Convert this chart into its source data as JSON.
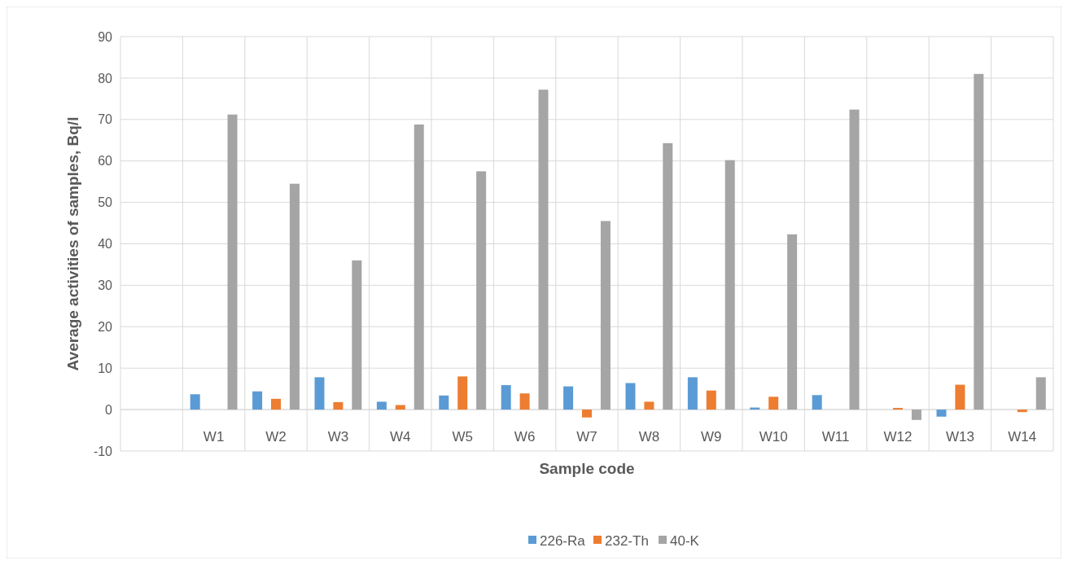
{
  "chart_data": {
    "type": "bar",
    "xlabel": "Sample code",
    "ylabel": "Average activities of samples, Bq/l",
    "categories": [
      null,
      "W1",
      "W2",
      "W3",
      "W4",
      "W5",
      "W6",
      "W7",
      "W8",
      "W9",
      "W10",
      "W11",
      "W12",
      "W13",
      "W14"
    ],
    "series": [
      {
        "name": "226-Ra",
        "color": "#5b9bd5",
        "values": [
          null,
          3.7,
          4.4,
          7.8,
          1.9,
          3.4,
          5.9,
          5.6,
          6.4,
          7.8,
          0.5,
          3.5,
          null,
          -1.7,
          null
        ]
      },
      {
        "name": "232-Th",
        "color": "#ed7d31",
        "values": [
          null,
          null,
          2.6,
          1.8,
          1.1,
          8.0,
          3.9,
          -1.9,
          1.9,
          4.6,
          3.1,
          null,
          0.4,
          6.0,
          -0.6
        ]
      },
      {
        "name": "40-K",
        "color": "#a5a5a5",
        "values": [
          null,
          71.2,
          54.5,
          36.0,
          68.8,
          57.5,
          77.2,
          45.5,
          64.3,
          60.2,
          42.3,
          72.4,
          -2.5,
          81.0,
          7.8
        ]
      }
    ],
    "ylim": [
      -10,
      90
    ],
    "yticks": [
      -10,
      0,
      10,
      20,
      30,
      40,
      50,
      60,
      70,
      80,
      90
    ],
    "grid": true,
    "legend": "bottom"
  }
}
